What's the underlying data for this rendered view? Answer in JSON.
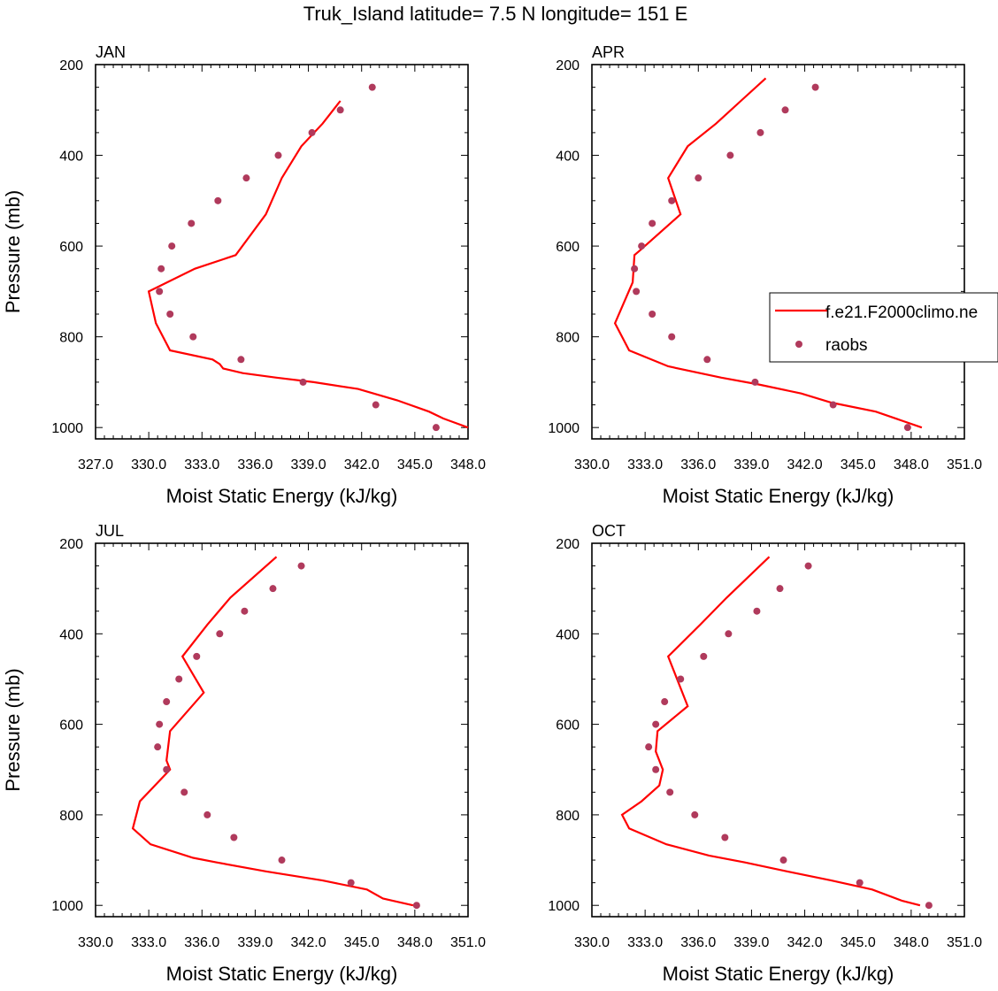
{
  "figure": {
    "title": "Truk_Island  latitude= 7.5 N longitude= 151 E"
  },
  "chart_data": [
    {
      "type": "line",
      "panel_label": "JAN",
      "xlabel": "Moist Static Energy (kJ/kg)",
      "ylabel": "Pressure (mb)",
      "xlim": [
        327.0,
        348.0
      ],
      "ylim": [
        1025,
        200
      ],
      "y_reversed": true,
      "x_ticks": [
        "327.0",
        "330.0",
        "333.0",
        "336.0",
        "339.0",
        "342.0",
        "345.0",
        "348.0"
      ],
      "y_ticks": [
        "200",
        "400",
        "600",
        "800",
        "1000"
      ],
      "grid": false,
      "series": [
        {
          "name": "f.e21.F2000climo.ne",
          "kind": "line",
          "color": "#ff0000",
          "x": [
            348.0,
            346.6,
            345.8,
            344.0,
            341.8,
            339.3,
            337.2,
            335.3,
            334.2,
            334.0,
            333.6,
            331.2,
            330.8,
            330.4,
            330.0,
            332.6,
            334.9,
            336.6,
            337.5,
            338.6,
            339.8,
            340.8
          ],
          "y": [
            1000,
            980,
            965,
            940,
            915,
            900,
            890,
            880,
            870,
            860,
            850,
            830,
            800,
            770,
            700,
            650,
            620,
            530,
            450,
            380,
            330,
            280
          ]
        },
        {
          "name": "raobs",
          "kind": "scatter",
          "color": "#b03a5c",
          "x": [
            342.6,
            340.8,
            339.2,
            337.3,
            335.5,
            333.9,
            332.4,
            331.3,
            330.7,
            330.6,
            331.2,
            332.5,
            335.2,
            338.7,
            342.8,
            346.2
          ],
          "y": [
            250,
            300,
            350,
            400,
            450,
            500,
            550,
            600,
            650,
            700,
            750,
            800,
            850,
            900,
            950,
            1000
          ]
        }
      ]
    },
    {
      "type": "line",
      "panel_label": "APR",
      "xlabel": "Moist Static Energy (kJ/kg)",
      "ylabel": "",
      "xlim": [
        330.0,
        351.0
      ],
      "ylim": [
        1025,
        200
      ],
      "y_reversed": true,
      "x_ticks": [
        "330.0",
        "333.0",
        "336.0",
        "339.0",
        "342.0",
        "345.0",
        "348.0",
        "351.0"
      ],
      "y_ticks": [
        "200",
        "400",
        "600",
        "800",
        "1000"
      ],
      "grid": false,
      "legend": {
        "placement": "right"
      },
      "series": [
        {
          "name": "f.e21.F2000climo.ne",
          "kind": "line",
          "color": "#ff0000",
          "x": [
            348.6,
            346.0,
            343.5,
            341.8,
            339.4,
            337.3,
            334.3,
            332.1,
            331.3,
            332.3,
            332.4,
            332.7,
            335.0,
            334.3,
            335.4,
            337.0,
            338.4,
            339.8
          ],
          "y": [
            1000,
            965,
            945,
            925,
            905,
            890,
            865,
            830,
            770,
            680,
            620,
            610,
            530,
            450,
            380,
            330,
            280,
            230
          ]
        },
        {
          "name": "raobs",
          "kind": "scatter",
          "color": "#b03a5c",
          "x": [
            342.6,
            340.9,
            339.5,
            337.8,
            336.0,
            334.5,
            333.4,
            332.8,
            332.4,
            332.5,
            333.4,
            334.5,
            336.5,
            339.2,
            343.6,
            347.8
          ],
          "y": [
            250,
            300,
            350,
            400,
            450,
            500,
            550,
            600,
            650,
            700,
            750,
            800,
            850,
            900,
            950,
            1000
          ]
        }
      ]
    },
    {
      "type": "line",
      "panel_label": "JUL",
      "xlabel": "Moist Static Energy (kJ/kg)",
      "ylabel": "Pressure (mb)",
      "xlim": [
        330.0,
        351.0
      ],
      "ylim": [
        1025,
        200
      ],
      "y_reversed": true,
      "x_ticks": [
        "330.0",
        "333.0",
        "336.0",
        "339.0",
        "342.0",
        "345.0",
        "348.0",
        "351.0"
      ],
      "y_ticks": [
        "200",
        "400",
        "600",
        "800",
        "1000"
      ],
      "grid": false,
      "series": [
        {
          "name": "f.e21.F2000climo.ne",
          "kind": "line",
          "color": "#ff0000",
          "x": [
            347.9,
            346.2,
            345.3,
            342.8,
            339.6,
            336.8,
            335.5,
            333.1,
            332.1,
            332.5,
            334.2,
            334.0,
            334.2,
            336.1,
            334.9,
            336.3,
            337.6,
            340.2
          ],
          "y": [
            1000,
            985,
            965,
            945,
            925,
            905,
            895,
            865,
            830,
            770,
            700,
            680,
            615,
            530,
            450,
            380,
            320,
            230
          ]
        },
        {
          "name": "raobs",
          "kind": "scatter",
          "color": "#b03a5c",
          "x": [
            341.6,
            340.0,
            338.4,
            337.0,
            335.7,
            334.7,
            334.0,
            333.6,
            333.5,
            334.0,
            335.0,
            336.3,
            337.8,
            340.5,
            344.4,
            348.1
          ],
          "y": [
            250,
            300,
            350,
            400,
            450,
            500,
            550,
            600,
            650,
            700,
            750,
            800,
            850,
            900,
            950,
            1000
          ]
        }
      ]
    },
    {
      "type": "line",
      "panel_label": "OCT",
      "xlabel": "Moist Static Energy (kJ/kg)",
      "ylabel": "",
      "xlim": [
        330.0,
        351.0
      ],
      "ylim": [
        1025,
        200
      ],
      "y_reversed": true,
      "x_ticks": [
        "330.0",
        "333.0",
        "336.0",
        "339.0",
        "342.0",
        "345.0",
        "348.0",
        "351.0"
      ],
      "y_ticks": [
        "200",
        "400",
        "600",
        "800",
        "1000"
      ],
      "grid": false,
      "series": [
        {
          "name": "f.e21.F2000climo.ne",
          "kind": "line",
          "color": "#ff0000",
          "x": [
            348.5,
            347.5,
            345.8,
            343.5,
            341.0,
            338.6,
            336.6,
            334.2,
            332.1,
            331.7,
            332.8,
            333.8,
            334.0,
            333.6,
            333.7,
            335.4,
            334.3,
            336.1,
            337.6,
            340.0
          ],
          "y": [
            1000,
            990,
            965,
            945,
            925,
            905,
            890,
            865,
            830,
            800,
            770,
            735,
            700,
            660,
            615,
            560,
            450,
            380,
            320,
            230
          ]
        },
        {
          "name": "raobs",
          "kind": "scatter",
          "color": "#b03a5c",
          "x": [
            342.2,
            340.6,
            339.3,
            337.7,
            336.3,
            335.0,
            334.1,
            333.6,
            333.2,
            333.6,
            334.4,
            335.8,
            337.5,
            340.8,
            345.1,
            349.0
          ],
          "y": [
            250,
            300,
            350,
            400,
            450,
            500,
            550,
            600,
            650,
            700,
            750,
            800,
            850,
            900,
            950,
            1000
          ]
        }
      ]
    }
  ]
}
